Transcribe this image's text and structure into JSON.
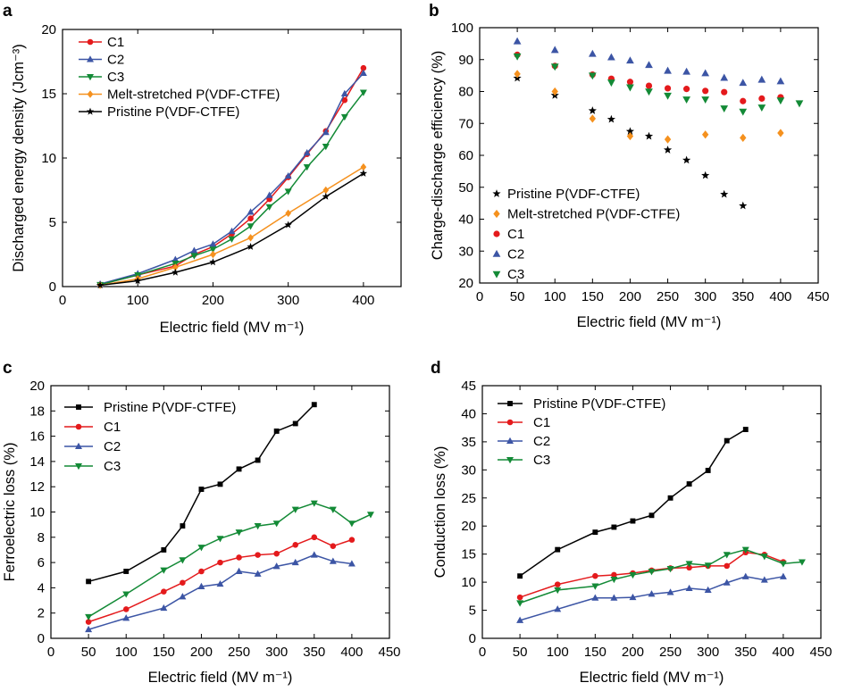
{
  "figure": {
    "panel_letters": [
      "a",
      "b",
      "c",
      "d"
    ]
  },
  "chart_data": [
    {
      "panel": "a",
      "type": "line",
      "xlabel": "Electric field (MV m⁻¹)",
      "ylabel": "Discharged energy density (Jcm⁻³)",
      "xlim": [
        0,
        450
      ],
      "ylim": [
        0,
        20
      ],
      "xticks": [
        0,
        100,
        200,
        300,
        400
      ],
      "yticks": [
        0,
        5,
        10,
        15,
        20
      ],
      "legend_position": "top-left",
      "grid": false,
      "series": [
        {
          "name": "C1",
          "color": "#e41a1c",
          "marker": "circle",
          "label_color": "#000000",
          "x": [
            50,
            100,
            150,
            175,
            200,
            225,
            250,
            275,
            300,
            325,
            350,
            375,
            400
          ],
          "y": [
            0.15,
            0.9,
            1.6,
            2.5,
            3.1,
            4.1,
            5.3,
            6.8,
            8.5,
            10.3,
            12.1,
            14.5,
            17.0
          ]
        },
        {
          "name": "C2",
          "color": "#3c55a5",
          "marker": "triangle-up",
          "label_color": "#000000",
          "x": [
            50,
            100,
            150,
            175,
            200,
            225,
            250,
            275,
            300,
            325,
            350,
            375,
            400
          ],
          "y": [
            0.2,
            1.0,
            2.1,
            2.8,
            3.3,
            4.3,
            5.8,
            7.1,
            8.6,
            10.4,
            12.0,
            15.0,
            16.6
          ]
        },
        {
          "name": "C3",
          "color": "#138a36",
          "marker": "triangle-down",
          "label_color": "#000000",
          "x": [
            50,
            100,
            150,
            175,
            200,
            225,
            250,
            275,
            300,
            325,
            350,
            375,
            400
          ],
          "y": [
            0.15,
            0.9,
            1.8,
            2.4,
            2.9,
            3.7,
            4.7,
            6.2,
            7.4,
            9.3,
            10.9,
            13.2,
            15.1
          ]
        },
        {
          "name": "Melt-stretched P(VDF-CTFE)",
          "color": "#f5911e",
          "marker": "diamond",
          "label_color": "#f5911e",
          "x": [
            50,
            100,
            150,
            200,
            250,
            300,
            350,
            400
          ],
          "y": [
            0.1,
            0.6,
            1.5,
            2.5,
            3.8,
            5.7,
            7.5,
            9.3
          ]
        },
        {
          "name": "Pristine P(VDF-CTFE)",
          "color": "#000000",
          "marker": "star",
          "label_color": "#000000",
          "x": [
            50,
            100,
            150,
            200,
            250,
            300,
            350,
            400
          ],
          "y": [
            0.1,
            0.45,
            1.1,
            1.9,
            3.1,
            4.8,
            7.0,
            8.8
          ]
        }
      ]
    },
    {
      "panel": "b",
      "type": "scatter",
      "xlabel": "Electric field (MV m⁻¹)",
      "ylabel": "Charge-discharge efficiency (%)",
      "xlim": [
        0,
        450
      ],
      "ylim": [
        20,
        100
      ],
      "xticks": [
        0,
        50,
        100,
        150,
        200,
        250,
        300,
        350,
        400,
        450
      ],
      "yticks": [
        20,
        30,
        40,
        50,
        60,
        70,
        80,
        90,
        100
      ],
      "legend_position": "bottom-left",
      "grid": false,
      "series": [
        {
          "name": "Pristine P(VDF-CTFE)",
          "color": "#000000",
          "marker": "star",
          "label_color": "#000000",
          "x": [
            50,
            100,
            150,
            175,
            200,
            225,
            250,
            275,
            300,
            325,
            350
          ],
          "y": [
            84.2,
            78.8,
            74.0,
            71.3,
            67.5,
            66.0,
            61.7,
            58.5,
            53.7,
            47.8,
            44.2
          ]
        },
        {
          "name": "Melt-stretched P(VDF-CTFE)",
          "color": "#f5911e",
          "marker": "diamond",
          "label_color": "#f5911e",
          "x": [
            50,
            100,
            150,
            200,
            250,
            300,
            350,
            400
          ],
          "y": [
            85.5,
            80.0,
            71.5,
            66.0,
            65.0,
            66.5,
            65.5,
            67.0
          ]
        },
        {
          "name": "C1",
          "color": "#e41a1c",
          "marker": "circle",
          "label_color": "#e41a1c",
          "x": [
            50,
            100,
            150,
            175,
            200,
            225,
            250,
            275,
            300,
            325,
            350,
            375,
            400
          ],
          "y": [
            91.5,
            88.0,
            85.3,
            84.0,
            83.0,
            81.8,
            81.0,
            80.8,
            80.2,
            79.8,
            77.0,
            77.8,
            78.2
          ]
        },
        {
          "name": "C2",
          "color": "#3c55a5",
          "marker": "triangle-up",
          "label_color": "#3c55a5",
          "x": [
            50,
            100,
            150,
            175,
            200,
            225,
            250,
            275,
            300,
            325,
            350,
            375,
            400
          ],
          "y": [
            95.7,
            93.0,
            91.8,
            90.7,
            89.7,
            88.3,
            86.5,
            86.2,
            85.7,
            84.3,
            82.7,
            83.7,
            83.2
          ]
        },
        {
          "name": "C3",
          "color": "#138a36",
          "marker": "triangle-down",
          "label_color": "#138a36",
          "x": [
            50,
            100,
            150,
            175,
            200,
            225,
            250,
            275,
            300,
            325,
            350,
            375,
            400,
            425
          ],
          "y": [
            91.0,
            87.8,
            85.0,
            82.8,
            81.3,
            80.0,
            78.7,
            77.5,
            77.5,
            74.7,
            73.7,
            75.0,
            77.2,
            76.3
          ]
        }
      ]
    },
    {
      "panel": "c",
      "type": "line",
      "xlabel": "Electric field (MV m⁻¹)",
      "ylabel": "Ferroelectric loss (%)",
      "xlim": [
        0,
        450
      ],
      "ylim": [
        0,
        20
      ],
      "xticks": [
        0,
        50,
        100,
        150,
        200,
        250,
        300,
        350,
        400,
        450
      ],
      "yticks": [
        0,
        2,
        4,
        6,
        8,
        10,
        12,
        14,
        16,
        18,
        20
      ],
      "legend_position": "top-left",
      "grid": false,
      "series": [
        {
          "name": "Pristine P(VDF-CTFE)",
          "color": "#000000",
          "marker": "square",
          "label_color": "#000000",
          "x": [
            50,
            100,
            150,
            175,
            200,
            225,
            250,
            275,
            300,
            325,
            350
          ],
          "y": [
            4.5,
            5.3,
            7.0,
            8.9,
            11.8,
            12.2,
            13.4,
            14.1,
            16.4,
            17.0,
            18.5
          ]
        },
        {
          "name": "C1",
          "color": "#e41a1c",
          "marker": "circle",
          "label_color": "#e41a1c",
          "x": [
            50,
            100,
            150,
            175,
            200,
            225,
            250,
            275,
            300,
            325,
            350,
            375,
            400
          ],
          "y": [
            1.3,
            2.3,
            3.7,
            4.4,
            5.3,
            6.0,
            6.4,
            6.6,
            6.7,
            7.4,
            8.0,
            7.3,
            7.8
          ]
        },
        {
          "name": "C2",
          "color": "#3c55a5",
          "marker": "triangle-up",
          "label_color": "#3c55a5",
          "x": [
            50,
            100,
            150,
            175,
            200,
            225,
            250,
            275,
            300,
            325,
            350,
            375,
            400
          ],
          "y": [
            0.7,
            1.6,
            2.4,
            3.3,
            4.1,
            4.3,
            5.3,
            5.1,
            5.7,
            6.0,
            6.6,
            6.1,
            5.9
          ]
        },
        {
          "name": "C3",
          "color": "#138a36",
          "marker": "triangle-down",
          "label_color": "#138a36",
          "x": [
            50,
            100,
            150,
            175,
            200,
            225,
            250,
            275,
            300,
            325,
            350,
            375,
            400,
            425
          ],
          "y": [
            1.7,
            3.5,
            5.4,
            6.2,
            7.2,
            7.9,
            8.4,
            8.9,
            9.1,
            10.2,
            10.7,
            10.2,
            9.1,
            9.8
          ]
        }
      ]
    },
    {
      "panel": "d",
      "type": "line",
      "xlabel": "Electric field (MV m⁻¹)",
      "ylabel": "Conduction loss (%)",
      "xlim": [
        0,
        450
      ],
      "ylim": [
        0,
        45
      ],
      "xticks": [
        0,
        50,
        100,
        150,
        200,
        250,
        300,
        350,
        400,
        450
      ],
      "yticks": [
        0,
        5,
        10,
        15,
        20,
        25,
        30,
        35,
        40,
        45
      ],
      "legend_position": "top-left",
      "grid": false,
      "series": [
        {
          "name": "Pristine P(VDF-CTFE)",
          "color": "#000000",
          "marker": "square",
          "label_color": "#000000",
          "x": [
            50,
            100,
            150,
            175,
            200,
            225,
            250,
            275,
            300,
            325,
            350
          ],
          "y": [
            11.1,
            15.8,
            18.9,
            19.8,
            20.9,
            21.9,
            25.0,
            27.5,
            29.9,
            35.2,
            37.2
          ]
        },
        {
          "name": "C1",
          "color": "#e41a1c",
          "marker": "circle",
          "label_color": "#e41a1c",
          "x": [
            50,
            100,
            150,
            175,
            200,
            225,
            250,
            275,
            300,
            325,
            350,
            375,
            400
          ],
          "y": [
            7.3,
            9.6,
            11.1,
            11.3,
            11.6,
            12.1,
            12.5,
            12.6,
            12.9,
            12.9,
            15.3,
            14.9,
            13.6
          ]
        },
        {
          "name": "C2",
          "color": "#3c55a5",
          "marker": "triangle-up",
          "label_color": "#3c55a5",
          "x": [
            50,
            100,
            150,
            175,
            200,
            225,
            250,
            275,
            300,
            325,
            350,
            375,
            400
          ],
          "y": [
            3.2,
            5.2,
            7.2,
            7.2,
            7.3,
            7.9,
            8.2,
            8.9,
            8.6,
            9.9,
            11.0,
            10.4,
            11.0
          ]
        },
        {
          "name": "C3",
          "color": "#138a36",
          "marker": "triangle-down",
          "label_color": "#138a36",
          "x": [
            50,
            100,
            150,
            175,
            200,
            225,
            250,
            275,
            300,
            325,
            350,
            375,
            400,
            425
          ],
          "y": [
            6.3,
            8.6,
            9.3,
            10.5,
            11.3,
            11.9,
            12.4,
            13.3,
            13.0,
            14.9,
            15.8,
            14.6,
            13.3,
            13.6
          ]
        }
      ]
    }
  ]
}
